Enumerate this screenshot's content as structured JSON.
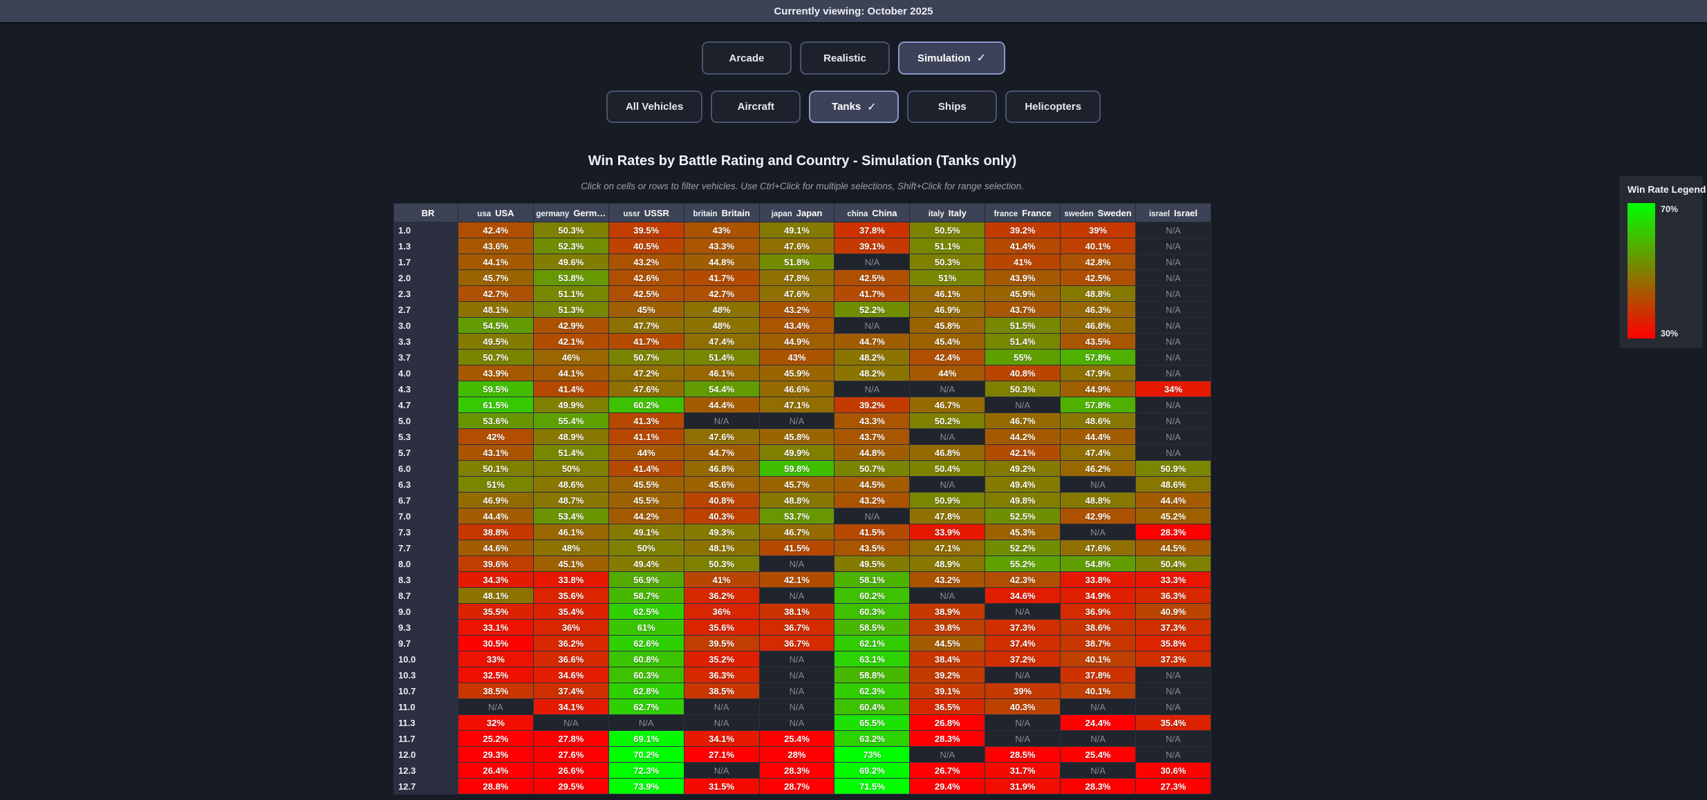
{
  "top_bar": {
    "text": "Currently viewing: October 2025"
  },
  "mode_buttons": [
    {
      "label": "Arcade",
      "selected": false
    },
    {
      "label": "Realistic",
      "selected": false
    },
    {
      "label": "Simulation",
      "selected": true
    }
  ],
  "vehicle_buttons": [
    {
      "label": "All Vehicles",
      "selected": false
    },
    {
      "label": "Aircraft",
      "selected": false
    },
    {
      "label": "Tanks",
      "selected": true
    },
    {
      "label": "Ships",
      "selected": false
    },
    {
      "label": "Helicopters",
      "selected": false
    }
  ],
  "check_glyph": "✓",
  "title": "Win Rates by Battle Rating and Country - Simulation (Tanks only)",
  "subtitle": "Click on cells or rows to filter vehicles. Use Ctrl+Click for multiple selections, Shift+Click for range selection.",
  "legend": {
    "title": "Win Rate Legend",
    "max_label": "70%",
    "min_label": "30%",
    "max_color": "#00ff00",
    "min_color": "#ff0000"
  },
  "chart_data": {
    "type": "heatmap",
    "title": "Win Rates by Battle Rating and Country - Simulation (Tanks only)",
    "color_scale": {
      "min": 30,
      "max": 70,
      "min_color": "#ff0000",
      "max_color": "#00ff00"
    },
    "br_header": "BR",
    "columns": [
      {
        "alt": "usa",
        "name": "USA"
      },
      {
        "alt": "germany",
        "name": "Germ…"
      },
      {
        "alt": "ussr",
        "name": "USSR"
      },
      {
        "alt": "britain",
        "name": "Britain"
      },
      {
        "alt": "japan",
        "name": "Japan"
      },
      {
        "alt": "china",
        "name": "China"
      },
      {
        "alt": "italy",
        "name": "Italy"
      },
      {
        "alt": "france",
        "name": "France"
      },
      {
        "alt": "sweden",
        "name": "Sweden"
      },
      {
        "alt": "israel",
        "name": "Israel"
      }
    ],
    "rows": [
      {
        "br": "1.0",
        "values": [
          "42.4%",
          "50.3%",
          "39.5%",
          "43%",
          "49.1%",
          "37.8%",
          "50.5%",
          "39.2%",
          "39%",
          "N/A"
        ]
      },
      {
        "br": "1.3",
        "values": [
          "43.6%",
          "52.3%",
          "40.5%",
          "43.3%",
          "47.6%",
          "39.1%",
          "51.1%",
          "41.4%",
          "40.1%",
          "N/A"
        ]
      },
      {
        "br": "1.7",
        "values": [
          "44.1%",
          "49.6%",
          "43.2%",
          "44.8%",
          "51.8%",
          "N/A",
          "50.3%",
          "41%",
          "42.8%",
          "N/A"
        ]
      },
      {
        "br": "2.0",
        "values": [
          "45.7%",
          "53.8%",
          "42.6%",
          "41.7%",
          "47.8%",
          "42.5%",
          "51%",
          "43.9%",
          "42.5%",
          "N/A"
        ]
      },
      {
        "br": "2.3",
        "values": [
          "42.7%",
          "51.1%",
          "42.5%",
          "42.7%",
          "47.6%",
          "41.7%",
          "46.1%",
          "45.9%",
          "48.8%",
          "N/A"
        ]
      },
      {
        "br": "2.7",
        "values": [
          "48.1%",
          "51.3%",
          "45%",
          "48%",
          "43.2%",
          "52.2%",
          "46.9%",
          "43.7%",
          "46.3%",
          "N/A"
        ]
      },
      {
        "br": "3.0",
        "values": [
          "54.5%",
          "42.9%",
          "47.7%",
          "48%",
          "43.4%",
          "N/A",
          "45.8%",
          "51.5%",
          "46.8%",
          "N/A"
        ]
      },
      {
        "br": "3.3",
        "values": [
          "49.5%",
          "42.1%",
          "41.7%",
          "47.4%",
          "44.9%",
          "44.7%",
          "45.4%",
          "51.4%",
          "43.5%",
          "N/A"
        ]
      },
      {
        "br": "3.7",
        "values": [
          "50.7%",
          "46%",
          "50.7%",
          "51.4%",
          "43%",
          "48.2%",
          "42.4%",
          "55%",
          "57.8%",
          "N/A"
        ]
      },
      {
        "br": "4.0",
        "values": [
          "43.9%",
          "44.1%",
          "47.2%",
          "46.1%",
          "45.9%",
          "48.2%",
          "44%",
          "40.8%",
          "47.9%",
          "N/A"
        ]
      },
      {
        "br": "4.3",
        "values": [
          "59.5%",
          "41.4%",
          "47.6%",
          "54.4%",
          "46.6%",
          "N/A",
          "N/A",
          "50.3%",
          "44.9%",
          "34%"
        ]
      },
      {
        "br": "4.7",
        "values": [
          "61.5%",
          "49.9%",
          "60.2%",
          "44.4%",
          "47.1%",
          "39.2%",
          "46.7%",
          "N/A",
          "57.8%",
          "N/A"
        ]
      },
      {
        "br": "5.0",
        "values": [
          "53.6%",
          "55.4%",
          "41.3%",
          "N/A",
          "N/A",
          "43.3%",
          "50.2%",
          "46.7%",
          "48.6%",
          "N/A"
        ]
      },
      {
        "br": "5.3",
        "values": [
          "42%",
          "48.9%",
          "41.1%",
          "47.6%",
          "45.8%",
          "43.7%",
          "N/A",
          "44.2%",
          "44.4%",
          "N/A"
        ]
      },
      {
        "br": "5.7",
        "values": [
          "43.1%",
          "51.4%",
          "44%",
          "44.7%",
          "49.9%",
          "44.8%",
          "46.8%",
          "42.1%",
          "47.4%",
          "N/A"
        ]
      },
      {
        "br": "6.0",
        "values": [
          "50.1%",
          "50%",
          "41.4%",
          "46.8%",
          "59.8%",
          "50.7%",
          "50.4%",
          "49.2%",
          "46.2%",
          "50.9%"
        ]
      },
      {
        "br": "6.3",
        "values": [
          "51%",
          "48.6%",
          "45.5%",
          "45.6%",
          "45.7%",
          "44.5%",
          "N/A",
          "49.4%",
          "N/A",
          "48.6%"
        ]
      },
      {
        "br": "6.7",
        "values": [
          "46.9%",
          "48.7%",
          "45.5%",
          "40.8%",
          "48.8%",
          "43.2%",
          "50.9%",
          "49.8%",
          "48.8%",
          "44.4%"
        ]
      },
      {
        "br": "7.0",
        "values": [
          "44.4%",
          "53.4%",
          "44.2%",
          "40.3%",
          "53.7%",
          "N/A",
          "47.8%",
          "52.5%",
          "42.9%",
          "45.2%"
        ]
      },
      {
        "br": "7.3",
        "values": [
          "38.8%",
          "46.1%",
          "49.1%",
          "49.3%",
          "46.7%",
          "41.5%",
          "33.9%",
          "45.3%",
          "N/A",
          "28.3%"
        ]
      },
      {
        "br": "7.7",
        "values": [
          "44.6%",
          "48%",
          "50%",
          "48.1%",
          "41.5%",
          "43.5%",
          "47.1%",
          "52.2%",
          "47.6%",
          "44.5%"
        ]
      },
      {
        "br": "8.0",
        "values": [
          "39.6%",
          "45.1%",
          "49.4%",
          "50.3%",
          "N/A",
          "49.5%",
          "48.9%",
          "55.2%",
          "54.8%",
          "50.4%"
        ]
      },
      {
        "br": "8.3",
        "values": [
          "34.3%",
          "33.8%",
          "56.9%",
          "41%",
          "42.1%",
          "58.1%",
          "43.2%",
          "42.3%",
          "33.8%",
          "33.3%"
        ]
      },
      {
        "br": "8.7",
        "values": [
          "48.1%",
          "35.6%",
          "58.7%",
          "36.2%",
          "N/A",
          "60.2%",
          "N/A",
          "34.6%",
          "34.9%",
          "36.3%"
        ]
      },
      {
        "br": "9.0",
        "values": [
          "35.5%",
          "35.4%",
          "62.5%",
          "36%",
          "38.1%",
          "60.3%",
          "38.9%",
          "N/A",
          "36.9%",
          "40.9%"
        ]
      },
      {
        "br": "9.3",
        "values": [
          "33.1%",
          "36%",
          "61%",
          "35.6%",
          "36.7%",
          "58.5%",
          "39.8%",
          "37.3%",
          "38.6%",
          "37.3%"
        ]
      },
      {
        "br": "9.7",
        "values": [
          "30.5%",
          "36.2%",
          "62.6%",
          "39.5%",
          "36.7%",
          "62.1%",
          "44.5%",
          "37.4%",
          "38.7%",
          "35.8%"
        ]
      },
      {
        "br": "10.0",
        "values": [
          "33%",
          "36.6%",
          "60.8%",
          "35.2%",
          "N/A",
          "63.1%",
          "38.4%",
          "37.2%",
          "40.1%",
          "37.3%"
        ]
      },
      {
        "br": "10.3",
        "values": [
          "32.5%",
          "34.6%",
          "60.3%",
          "36.3%",
          "N/A",
          "58.8%",
          "39.2%",
          "N/A",
          "37.8%",
          "N/A"
        ]
      },
      {
        "br": "10.7",
        "values": [
          "38.5%",
          "37.4%",
          "62.8%",
          "38.5%",
          "N/A",
          "62.3%",
          "39.1%",
          "39%",
          "40.1%",
          "N/A"
        ]
      },
      {
        "br": "11.0",
        "values": [
          "N/A",
          "34.1%",
          "62.7%",
          "N/A",
          "N/A",
          "60.4%",
          "36.5%",
          "40.3%",
          "N/A",
          "N/A"
        ]
      },
      {
        "br": "11.3",
        "values": [
          "32%",
          "N/A",
          "N/A",
          "N/A",
          "N/A",
          "65.5%",
          "26.8%",
          "N/A",
          "24.4%",
          "35.4%"
        ]
      },
      {
        "br": "11.7",
        "values": [
          "25.2%",
          "27.8%",
          "69.1%",
          "34.1%",
          "25.4%",
          "63.2%",
          "28.3%",
          "N/A",
          "N/A",
          "N/A"
        ]
      },
      {
        "br": "12.0",
        "values": [
          "29.3%",
          "27.6%",
          "70.2%",
          "27.1%",
          "28%",
          "73%",
          "N/A",
          "28.5%",
          "25.4%",
          "N/A"
        ]
      },
      {
        "br": "12.3",
        "values": [
          "26.4%",
          "26.6%",
          "72.3%",
          "N/A",
          "28.3%",
          "69.2%",
          "26.7%",
          "31.7%",
          "N/A",
          "30.6%"
        ]
      },
      {
        "br": "12.7",
        "values": [
          "28.8%",
          "29.5%",
          "73.9%",
          "31.5%",
          "28.7%",
          "71.5%",
          "29.4%",
          "31.9%",
          "28.3%",
          "27.3%"
        ]
      }
    ]
  }
}
